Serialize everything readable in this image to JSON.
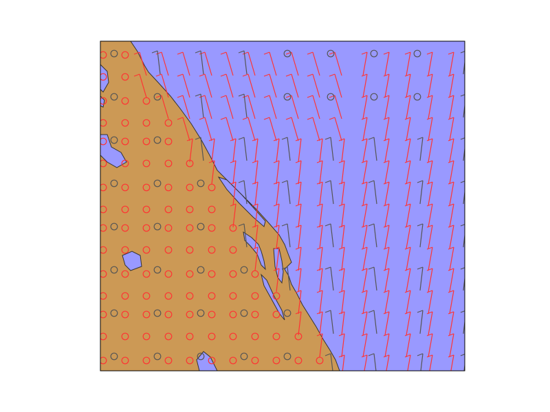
{
  "colors": {
    "figure_background": "#ffffff",
    "ocean": "#9999ff",
    "land": "#cc9955",
    "coastline": "#333333",
    "frame": "#000000",
    "barb_coarse": "#ff3333",
    "barb_fine": "#555555"
  },
  "map": {
    "projection_note": "",
    "features": [
      "ocean",
      "land",
      "coastline",
      "lakes",
      "wind-barbs",
      "calm-circles"
    ]
  },
  "wind": {
    "series": [
      {
        "color_key": "barb_coarse"
      },
      {
        "color_key": "barb_fine"
      }
    ],
    "calm_symbol": "circle",
    "barb_symbol": "wind-barb"
  }
}
